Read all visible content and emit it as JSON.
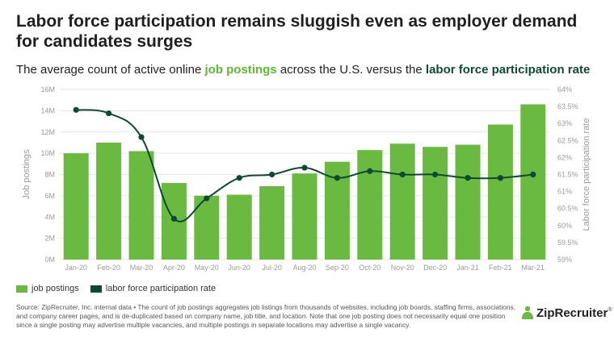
{
  "header": {
    "title": "Labor force participation remains sluggish even as employer demand for candidates surges",
    "subtitle_pre": "The average count of active online ",
    "subtitle_hl1": "job postings",
    "subtitle_mid": " across the U.S. versus the ",
    "subtitle_hl2": "labor force participation rate"
  },
  "colors": {
    "bar": "#6ab941",
    "line": "#0e4a33",
    "grid": "#e6e6e6",
    "highlight_green": "#5fb832"
  },
  "chart_data": {
    "type": "bar",
    "categories": [
      "Jan-20",
      "Feb-20",
      "Mar-20",
      "Apr-20",
      "May-20",
      "Jun-20",
      "Jul-20",
      "Aug-20",
      "Sep-20",
      "Oct-20",
      "Nov-20",
      "Dec-20",
      "Jan-21",
      "Feb-21",
      "Mar-21"
    ],
    "series": [
      {
        "name": "job postings",
        "type": "bar",
        "axis": "left",
        "values": [
          10.0,
          11.0,
          10.2,
          7.2,
          6.0,
          6.1,
          6.9,
          8.1,
          9.2,
          10.3,
          10.9,
          10.6,
          10.8,
          12.7,
          14.6
        ]
      },
      {
        "name": "labor force participation rate",
        "type": "line",
        "axis": "right",
        "values": [
          63.4,
          63.3,
          62.6,
          60.2,
          60.8,
          61.4,
          61.5,
          61.7,
          61.4,
          61.6,
          61.5,
          61.5,
          61.4,
          61.4,
          61.5
        ]
      }
    ],
    "left_axis": {
      "label": "Job postings",
      "min": 0,
      "max": 16,
      "ticks": [
        "0M",
        "2M",
        "4M",
        "6M",
        "8M",
        "10M",
        "12M",
        "14M",
        "16M"
      ]
    },
    "right_axis": {
      "label": "Labor force participation rate",
      "min": 59,
      "max": 64,
      "ticks": [
        "59%",
        "59.5%",
        "60%",
        "60.5%",
        "61%",
        "61.5%",
        "62%",
        "62.5%",
        "63%",
        "63.5%",
        "64%"
      ]
    },
    "grid": true,
    "legend_position": "bottom-left"
  },
  "footer": {
    "source": "Source: ZipRecruiter, Inc. internal data • The count of job postings aggregates job listings from thousands of websites, including job boards, staffing firms, associations, and company career pages, and is de-duplicated based on company name, job title, and location. Note that one job posting does not necessarily equal one position since a single posting may advertise multiple vacancies, and multiple postings in separate locations may advertise a single vacancy.",
    "logo_text": "ZipRecruiter",
    "logo_mark": "®"
  }
}
